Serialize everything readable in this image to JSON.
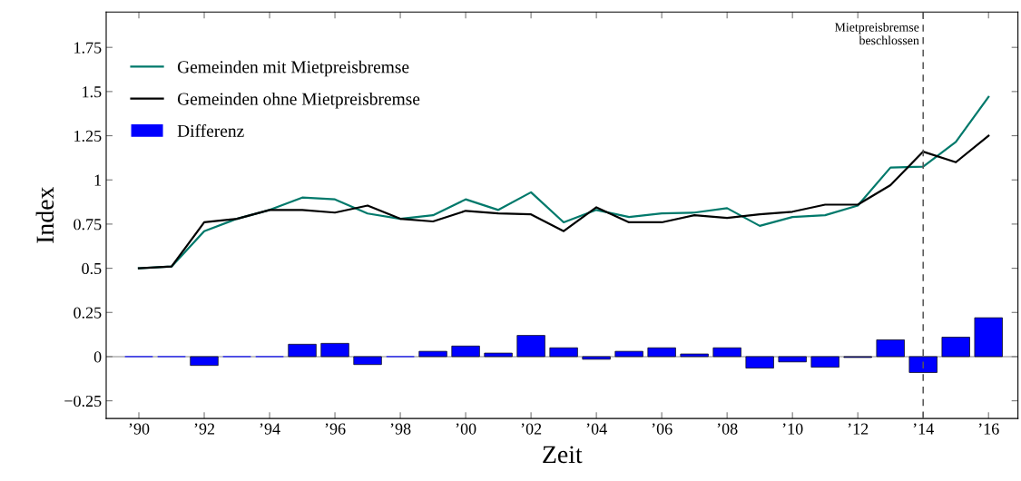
{
  "chart_data": {
    "type": "line",
    "xlabel": "Zeit",
    "ylabel": "Index",
    "x": [
      1990,
      1991,
      1992,
      1993,
      1994,
      1995,
      1996,
      1997,
      1998,
      1999,
      2000,
      2001,
      2002,
      2003,
      2004,
      2005,
      2006,
      2007,
      2008,
      2009,
      2010,
      2011,
      2012,
      2013,
      2014,
      2015,
      2016
    ],
    "series": [
      {
        "name": "Gemeinden mit Mietpreisbremse",
        "color": "#00796b",
        "values": [
          0.5,
          0.51,
          0.71,
          0.78,
          0.83,
          0.9,
          0.89,
          0.81,
          0.78,
          0.8,
          0.89,
          0.83,
          0.93,
          0.76,
          0.83,
          0.79,
          0.81,
          0.815,
          0.84,
          0.74,
          0.79,
          0.8,
          0.855,
          1.07,
          1.075,
          1.215,
          1.47
        ]
      },
      {
        "name": "Gemeinden ohne Mietpreisbremse",
        "color": "#000000",
        "values": [
          0.5,
          0.51,
          0.76,
          0.78,
          0.83,
          0.83,
          0.815,
          0.855,
          0.78,
          0.765,
          0.825,
          0.81,
          0.805,
          0.71,
          0.845,
          0.76,
          0.76,
          0.8,
          0.785,
          0.805,
          0.82,
          0.86,
          0.86,
          0.97,
          1.16,
          1.1,
          1.25
        ]
      },
      {
        "name": "Differenz",
        "type": "bar",
        "color": "#0000ff",
        "values": [
          0,
          0,
          -0.05,
          0,
          0,
          0.07,
          0.075,
          -0.045,
          0,
          0.03,
          0.06,
          0.02,
          0.12,
          0.05,
          -0.015,
          0.03,
          0.05,
          0.015,
          0.05,
          -0.065,
          -0.03,
          -0.06,
          -0.005,
          0.095,
          -0.09,
          0.11,
          0.22
        ]
      }
    ],
    "xlim": [
      1989,
      2016.9
    ],
    "ylim": [
      -0.35,
      1.95
    ],
    "xticks": [
      {
        "value": 1990,
        "label": "’90"
      },
      {
        "value": 1992,
        "label": "’92"
      },
      {
        "value": 1994,
        "label": "’94"
      },
      {
        "value": 1996,
        "label": "’96"
      },
      {
        "value": 1998,
        "label": "’98"
      },
      {
        "value": 2000,
        "label": "’00"
      },
      {
        "value": 2002,
        "label": "’02"
      },
      {
        "value": 2004,
        "label": "’04"
      },
      {
        "value": 2006,
        "label": "’06"
      },
      {
        "value": 2008,
        "label": "’08"
      },
      {
        "value": 2010,
        "label": "’10"
      },
      {
        "value": 2012,
        "label": "’12"
      },
      {
        "value": 2014,
        "label": "’14"
      },
      {
        "value": 2016,
        "label": "’16"
      }
    ],
    "yticks": [
      {
        "value": -0.25,
        "label": "−0.25"
      },
      0,
      0.25,
      0.5,
      0.75,
      1,
      1.25,
      1.5,
      1.75
    ],
    "ref_lines": [
      {
        "axis": "x",
        "value": 2014,
        "label": "Mietpreisbremse\nbeschlossen",
        "color": "#555555",
        "line_style": "dashed"
      }
    ],
    "legend": "top left",
    "grid": false
  }
}
